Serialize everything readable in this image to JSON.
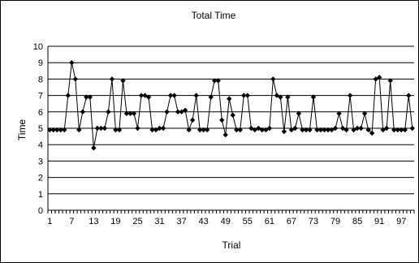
{
  "chart_data": {
    "type": "line",
    "title": "Total Time",
    "xlabel": "Trial",
    "ylabel": "Time",
    "ylim": [
      0,
      10
    ],
    "yticks": [
      0,
      1,
      2,
      3,
      4,
      5,
      6,
      7,
      8,
      9,
      10
    ],
    "xlim": [
      1,
      100
    ],
    "xtick_labels": [
      1,
      7,
      13,
      19,
      25,
      31,
      37,
      43,
      49,
      55,
      61,
      67,
      73,
      79,
      85,
      91,
      97
    ],
    "grid": "horizontal",
    "legend": "none",
    "series": [
      {
        "color": "#000000",
        "marker": "diamond",
        "x": [
          1,
          2,
          3,
          4,
          5,
          6,
          7,
          8,
          9,
          10,
          11,
          12,
          13,
          14,
          15,
          16,
          17,
          18,
          19,
          20,
          21,
          22,
          23,
          24,
          25,
          26,
          27,
          28,
          29,
          30,
          31,
          32,
          33,
          34,
          35,
          36,
          37,
          38,
          39,
          40,
          41,
          42,
          43,
          44,
          45,
          46,
          47,
          48,
          49,
          50,
          51,
          52,
          53,
          54,
          55,
          56,
          57,
          58,
          59,
          60,
          61,
          62,
          63,
          64,
          65,
          66,
          67,
          68,
          69,
          70,
          71,
          72,
          73,
          74,
          75,
          76,
          77,
          78,
          79,
          80,
          81,
          82,
          83,
          84,
          85,
          86,
          87,
          88,
          89,
          90,
          91,
          92,
          93,
          94,
          95,
          96,
          97,
          98,
          99,
          100
        ],
        "values": [
          4.9,
          4.9,
          4.9,
          4.9,
          4.9,
          7.0,
          9.0,
          8.0,
          4.9,
          6.0,
          6.9,
          6.9,
          3.8,
          5.0,
          5.0,
          5.0,
          6.0,
          8.0,
          4.9,
          4.9,
          7.9,
          5.9,
          5.9,
          5.9,
          5.0,
          7.0,
          7.0,
          6.9,
          4.9,
          4.9,
          5.0,
          5.0,
          6.0,
          7.0,
          7.0,
          6.0,
          6.0,
          6.1,
          4.9,
          5.5,
          7.0,
          4.9,
          4.9,
          4.9,
          6.9,
          7.9,
          7.9,
          5.5,
          4.6,
          6.8,
          5.8,
          4.9,
          4.9,
          7.0,
          7.0,
          5.0,
          4.9,
          5.0,
          4.9,
          4.9,
          5.0,
          8.0,
          7.0,
          6.9,
          4.8,
          6.9,
          4.9,
          5.0,
          5.9,
          4.9,
          4.9,
          4.9,
          6.9,
          4.9,
          4.9,
          4.9,
          4.9,
          4.9,
          5.0,
          5.9,
          5.0,
          4.9,
          7.0,
          4.9,
          5.0,
          5.0,
          5.9,
          4.9,
          4.7,
          8.0,
          8.1,
          4.9,
          5.0,
          7.9,
          4.9,
          4.9,
          4.9,
          4.9,
          7.0,
          5.0
        ]
      }
    ]
  }
}
